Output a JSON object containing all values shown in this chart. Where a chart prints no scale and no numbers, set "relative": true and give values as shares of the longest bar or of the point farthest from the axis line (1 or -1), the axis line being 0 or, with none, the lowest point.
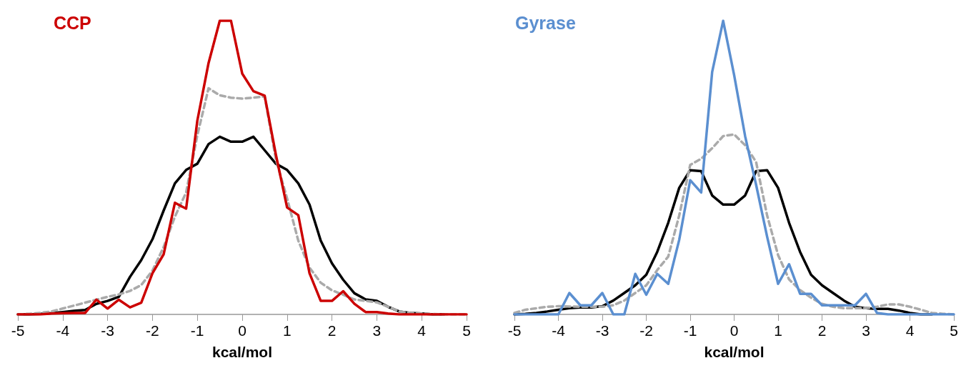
{
  "chart_data": [
    {
      "type": "line",
      "title": "CCP",
      "xlabel": "kcal/mol",
      "relative": true,
      "grid": false,
      "tick_labels": "x",
      "marker": "none",
      "xlim": [
        -5,
        5
      ],
      "xticks": [
        -5,
        -4,
        -3,
        -2,
        -1,
        0,
        1,
        2,
        3,
        4,
        5
      ],
      "x": [
        -5,
        -4.75,
        -4.5,
        -4.25,
        -4,
        -3.75,
        -3.5,
        -3.25,
        -3,
        -2.75,
        -2.5,
        -2.25,
        -2,
        -1.75,
        -1.5,
        -1.25,
        -1,
        -0.75,
        -0.5,
        -0.25,
        0,
        0.25,
        0.5,
        0.75,
        1,
        1.25,
        1.5,
        1.75,
        2,
        2.25,
        2.5,
        2.75,
        3,
        3.25,
        3.5,
        3.75,
        4,
        4.25,
        4.5,
        4.75,
        5
      ],
      "series": [
        {
          "color": "#000000",
          "line_style": "solid",
          "values": [
            0,
            0,
            0.002,
            0.004,
            0.008,
            0.012,
            0.015,
            0.036,
            0.046,
            0.06,
            0.128,
            0.185,
            0.256,
            0.354,
            0.446,
            0.492,
            0.513,
            0.58,
            0.605,
            0.588,
            0.588,
            0.605,
            0.559,
            0.513,
            0.492,
            0.446,
            0.374,
            0.251,
            0.174,
            0.118,
            0.072,
            0.051,
            0.046,
            0.026,
            0.01,
            0.005,
            0.003,
            0,
            0,
            null,
            null
          ]
        },
        {
          "color": "#aaaaaa",
          "line_style": "dashed",
          "values": [
            0,
            0.002,
            0.005,
            0.01,
            0.02,
            0.03,
            0.04,
            0.05,
            0.06,
            0.068,
            0.08,
            0.1,
            0.149,
            0.23,
            0.333,
            0.415,
            0.61,
            0.77,
            0.746,
            0.738,
            0.735,
            0.738,
            0.742,
            0.528,
            0.395,
            0.251,
            0.159,
            0.108,
            0.082,
            0.067,
            0.051,
            0.046,
            0.041,
            0.026,
            0.01,
            0.005,
            0.003,
            0.001,
            0,
            0,
            0
          ]
        },
        {
          "color": "#cc0000",
          "line_style": "solid",
          "values": [
            0,
            0,
            0,
            0.003,
            0.004,
            0.005,
            0.005,
            0.05,
            0.02,
            0.05,
            0.024,
            0.04,
            0.14,
            0.205,
            0.38,
            0.36,
            0.66,
            0.856,
            1,
            1,
            0.82,
            0.76,
            0.745,
            0.544,
            0.364,
            0.338,
            0.14,
            0.046,
            0.046,
            0.079,
            0.036,
            0.008,
            0.008,
            0.003,
            0,
            0,
            0,
            0,
            0,
            0,
            0
          ]
        }
      ]
    },
    {
      "type": "line",
      "title": "Gyrase",
      "xlabel": "kcal/mol",
      "relative": true,
      "grid": false,
      "tick_labels": "x",
      "marker": "none",
      "xlim": [
        -5,
        5
      ],
      "xticks": [
        -5,
        -4,
        -3,
        -2,
        -1,
        0,
        1,
        2,
        3,
        4,
        5
      ],
      "x": [
        -5,
        -4.75,
        -4.5,
        -4.25,
        -4,
        -3.75,
        -3.5,
        -3.25,
        -3,
        -2.75,
        -2.5,
        -2.25,
        -2,
        -1.75,
        -1.5,
        -1.25,
        -1,
        -0.75,
        -0.5,
        -0.25,
        0,
        0.25,
        0.5,
        0.75,
        1,
        1.25,
        1.5,
        1.75,
        2,
        2.25,
        2.5,
        2.75,
        3,
        3.25,
        3.5,
        3.75,
        4,
        4.25,
        4.5,
        4.75,
        5
      ],
      "series": [
        {
          "color": "#000000",
          "line_style": "solid",
          "values": [
            0,
            0.002,
            0.005,
            0.01,
            0.016,
            0.021,
            0.024,
            0.024,
            0.028,
            0.047,
            0.073,
            0.099,
            0.135,
            0.213,
            0.312,
            0.431,
            0.491,
            0.488,
            0.405,
            0.374,
            0.374,
            0.405,
            0.488,
            0.491,
            0.431,
            0.312,
            0.213,
            0.135,
            0.099,
            0.073,
            0.047,
            0.026,
            0.021,
            0.019,
            0.019,
            0.013,
            0.005,
            0,
            0,
            null,
            null
          ]
        },
        {
          "color": "#aaaaaa",
          "line_style": "dashed",
          "values": [
            0.005,
            0.016,
            0.021,
            0.026,
            0.028,
            0.027,
            0.026,
            0.026,
            0.026,
            0.031,
            0.047,
            0.073,
            0.099,
            0.151,
            0.197,
            0.337,
            0.509,
            0.53,
            0.566,
            0.607,
            0.613,
            0.576,
            0.519,
            0.337,
            0.202,
            0.119,
            0.083,
            0.057,
            0.036,
            0.026,
            0.021,
            0.021,
            0.021,
            0.026,
            0.034,
            0.034,
            0.026,
            0.016,
            0.005,
            0.002,
            0
          ]
        },
        {
          "color": "#5b8fd0",
          "line_style": "solid",
          "values": [
            0,
            0,
            0,
            0,
            0,
            0.073,
            0.031,
            0.031,
            0.073,
            0,
            0,
            0.138,
            0.067,
            0.138,
            0.104,
            0.254,
            0.457,
            0.415,
            0.826,
            1,
            0.815,
            0.607,
            0.441,
            0.265,
            0.104,
            0.171,
            0.07,
            0.07,
            0.031,
            0.031,
            0.031,
            0.031,
            0.07,
            0.005,
            0,
            0,
            0,
            0,
            0,
            0,
            0
          ]
        }
      ]
    }
  ]
}
